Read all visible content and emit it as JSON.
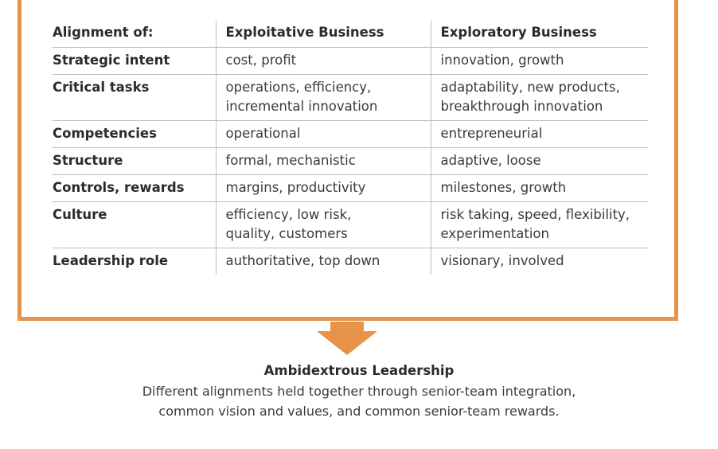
{
  "table": {
    "headers": [
      "Alignment of:",
      "Exploitative Business",
      "Exploratory Business"
    ],
    "rows": [
      {
        "label": "Strategic intent",
        "exploit": [
          "cost, profit"
        ],
        "explore": [
          "innovation, growth"
        ]
      },
      {
        "label": "Critical tasks",
        "exploit": [
          "operations, efficiency,",
          "incremental innovation"
        ],
        "explore": [
          "adaptability, new products,",
          "breakthrough innovation"
        ]
      },
      {
        "label": "Competencies",
        "exploit": [
          "operational"
        ],
        "explore": [
          "entrepreneurial"
        ]
      },
      {
        "label": "Structure",
        "exploit": [
          "formal, mechanistic"
        ],
        "explore": [
          "adaptive, loose"
        ]
      },
      {
        "label": "Controls, rewards",
        "exploit": [
          "margins, productivity"
        ],
        "explore": [
          "milestones, growth"
        ]
      },
      {
        "label": "Culture",
        "exploit": [
          "efficiency, low risk,",
          "quality, customers"
        ],
        "explore": [
          "risk taking, speed, flexibility,",
          "experimentation"
        ]
      },
      {
        "label": "Leadership role",
        "exploit": [
          "authoritative, top down"
        ],
        "explore": [
          "visionary, involved"
        ]
      }
    ]
  },
  "footer": {
    "title": "Ambidextrous Leadership",
    "line1": "Different alignments held together through senior-team integration,",
    "line2": "common vision and values, and common senior-team rewards."
  },
  "colors": {
    "accent": "#e8934a",
    "rule": "#bdbdbd",
    "text": "#2b2b2b"
  },
  "icons": [
    "down-arrow-icon"
  ]
}
